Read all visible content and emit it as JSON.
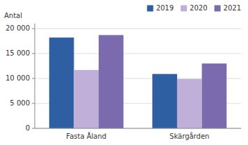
{
  "chart_data": {
    "type": "bar",
    "ylabel": "Antal",
    "categories": [
      "Fasta Åland",
      "Skärgården"
    ],
    "series": [
      {
        "name": "2019",
        "color": "#2e5fa3",
        "values": [
          18200,
          10900
        ]
      },
      {
        "name": "2020",
        "color": "#c0afd8",
        "values": [
          11700,
          9900
        ]
      },
      {
        "name": "2021",
        "color": "#7b6aad",
        "values": [
          18700,
          13000
        ]
      }
    ],
    "ylim": [
      0,
      21000
    ],
    "yticks": [
      0,
      {
        "value": 5000,
        "label": "5 000"
      },
      {
        "value": 10000,
        "label": "10 000"
      },
      {
        "value": 15000,
        "label": "15 000"
      },
      {
        "value": 20000,
        "label": "20 000"
      }
    ],
    "grid": true,
    "legend": "upper right"
  }
}
